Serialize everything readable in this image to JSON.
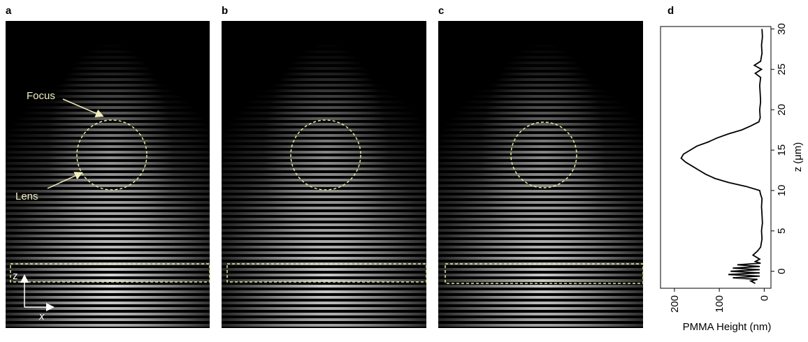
{
  "panels": [
    "a",
    "b",
    "c"
  ],
  "annotations": {
    "focus": "Focus",
    "lens": "Lens",
    "axis_z": "z",
    "axis_x": "x"
  },
  "chart_data": {
    "type": "line",
    "title": "d",
    "x_label": "PMMA Height (nm)",
    "y_label": "z (μm)",
    "x": [
      5,
      4,
      6,
      5,
      8,
      22,
      6,
      20,
      8,
      10,
      9,
      8,
      10,
      9,
      12,
      30,
      50,
      80,
      105,
      125,
      150,
      165,
      180,
      185,
      175,
      160,
      145,
      130,
      110,
      80,
      40,
      10,
      8,
      5,
      6,
      5,
      4,
      6,
      5,
      8,
      15,
      25,
      10,
      20,
      8,
      60,
      10,
      70,
      10,
      75,
      10,
      80,
      10,
      70,
      15,
      30,
      20
    ],
    "values": [
      30,
      29,
      28,
      27,
      26,
      25.5,
      25,
      24.5,
      24,
      23,
      22,
      21,
      20,
      19,
      18.5,
      18,
      17.5,
      17,
      16.5,
      16,
      15.5,
      15,
      14.5,
      14,
      13.5,
      13,
      12.5,
      12,
      11.5,
      11,
      10.5,
      10,
      9.5,
      9,
      8,
      7,
      6,
      5,
      4,
      3,
      2.5,
      2,
      1.5,
      1.2,
      1,
      0.8,
      0.6,
      0.4,
      0.2,
      0,
      -0.2,
      -0.4,
      -0.6,
      -0.8,
      -1,
      -1.2,
      -1.5
    ],
    "xlim": [
      231,
      -15
    ],
    "ylim": [
      -2.1,
      30.3
    ],
    "xticks": [
      200,
      100,
      0
    ],
    "yticks": [
      0,
      5,
      10,
      15,
      20,
      25,
      30
    ],
    "color": "#000000"
  }
}
